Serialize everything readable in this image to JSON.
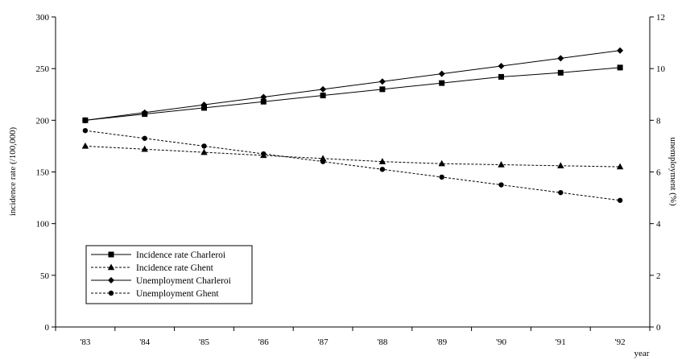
{
  "chart_data": {
    "type": "line",
    "title": "",
    "xlabel": "year",
    "ylabel": "incidence rate (/100,000)",
    "y2label": "unemployment (%)",
    "categories": [
      "'83",
      "'84",
      "'85",
      "'86",
      "'87",
      "'88",
      "'89",
      "'90",
      "'91",
      "'92"
    ],
    "ylim": [
      0,
      300
    ],
    "y2lim": [
      0,
      12
    ],
    "yticks": [
      0,
      50,
      100,
      150,
      200,
      250,
      300
    ],
    "y2ticks": [
      0,
      2,
      4,
      6,
      8,
      10,
      12
    ],
    "grid": false,
    "legend_position": "bottom-left",
    "series": [
      {
        "name": "Incidence rate Charleroi",
        "axis": "left",
        "marker": "square",
        "dash": "solid",
        "values": [
          200,
          206,
          212,
          218,
          224,
          230,
          236,
          242,
          246,
          251
        ]
      },
      {
        "name": "Incidence rate Ghent",
        "axis": "left",
        "marker": "triangle",
        "dash": "dashed",
        "values": [
          175,
          172,
          169,
          166,
          163,
          160,
          158,
          157,
          156,
          155
        ]
      },
      {
        "name": "Unemployment Charleroi",
        "axis": "right",
        "marker": "diamond",
        "dash": "solid",
        "values": [
          8.0,
          8.3,
          8.6,
          8.9,
          9.2,
          9.5,
          9.8,
          10.1,
          10.4,
          10.7
        ]
      },
      {
        "name": "Unemployment Ghent",
        "axis": "right",
        "marker": "circle",
        "dash": "dashed",
        "values": [
          7.6,
          7.3,
          7.0,
          6.7,
          6.4,
          6.1,
          5.8,
          5.5,
          5.2,
          4.9
        ]
      }
    ]
  }
}
